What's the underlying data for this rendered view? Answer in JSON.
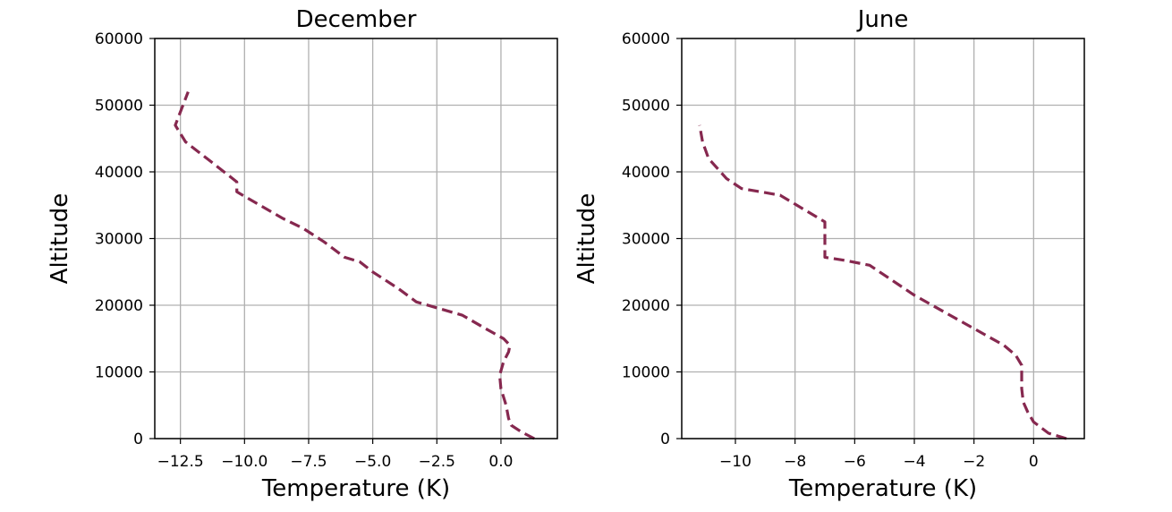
{
  "chart_data": [
    {
      "type": "line",
      "title": "December",
      "xlabel": "Temperature (K)",
      "ylabel": "Altitude",
      "xlim": [
        -13.5,
        2.2
      ],
      "ylim": [
        0,
        60000
      ],
      "grid": true,
      "xticks": [
        -12.5,
        -10.0,
        -7.5,
        -5.0,
        -2.5,
        0.0
      ],
      "xtick_labels": [
        "−12.5",
        "−10.0",
        "−7.5",
        "−5.0",
        "−2.5",
        "0.0"
      ],
      "yticks": [
        0,
        10000,
        20000,
        30000,
        40000,
        50000,
        60000
      ],
      "ytick_labels": [
        "0",
        "10000",
        "20000",
        "30000",
        "40000",
        "50000",
        "60000"
      ],
      "series": [
        {
          "color": "#86284f",
          "x": [
            1.3,
            0.8,
            0.4,
            0.3,
            0.2,
            0.0,
            -0.05,
            0.1,
            0.3,
            0.35,
            0.1,
            -0.6,
            -1.5,
            -3.3,
            -4.0,
            -5.0,
            -5.5,
            -6.1,
            -6.9,
            -7.7,
            -8.5,
            -10.3,
            -10.3,
            -11.3,
            -12.3,
            -12.7,
            -12.2
          ],
          "y": [
            0,
            1000,
            2000,
            3000,
            5000,
            7500,
            9500,
            11500,
            13000,
            14000,
            15000,
            16500,
            18500,
            20500,
            22500,
            25000,
            26500,
            27200,
            29500,
            31500,
            33000,
            37000,
            38500,
            41500,
            44500,
            47000,
            52000
          ]
        }
      ]
    },
    {
      "type": "line",
      "title": "June",
      "xlabel": "Temperature (K)",
      "ylabel": "Altitude",
      "xlim": [
        -11.8,
        1.7
      ],
      "ylim": [
        0,
        60000
      ],
      "grid": true,
      "xticks": [
        -10,
        -8,
        -6,
        -4,
        -2,
        0
      ],
      "xtick_labels": [
        "−10",
        "−8",
        "−6",
        "−4",
        "−2",
        "0"
      ],
      "yticks": [
        0,
        10000,
        20000,
        30000,
        40000,
        50000,
        60000
      ],
      "ytick_labels": [
        "0",
        "10000",
        "20000",
        "30000",
        "40000",
        "50000",
        "60000"
      ],
      "series": [
        {
          "color": "#86284f",
          "x": [
            1.1,
            0.5,
            0.0,
            -0.2,
            -0.35,
            -0.4,
            -0.4,
            -0.4,
            -0.6,
            -1.0,
            -2.0,
            -3.0,
            -4.0,
            -5.5,
            -6.3,
            -7.0,
            -7.0,
            -7.0,
            -8.5,
            -9.8,
            -10.3,
            -10.9,
            -11.1,
            -11.2
          ],
          "y": [
            0,
            800,
            2500,
            4000,
            5500,
            7500,
            9500,
            11000,
            12500,
            14000,
            16500,
            19000,
            21500,
            26000,
            26700,
            27200,
            30000,
            32500,
            36500,
            37500,
            39000,
            42000,
            44500,
            47000
          ]
        }
      ]
    }
  ]
}
